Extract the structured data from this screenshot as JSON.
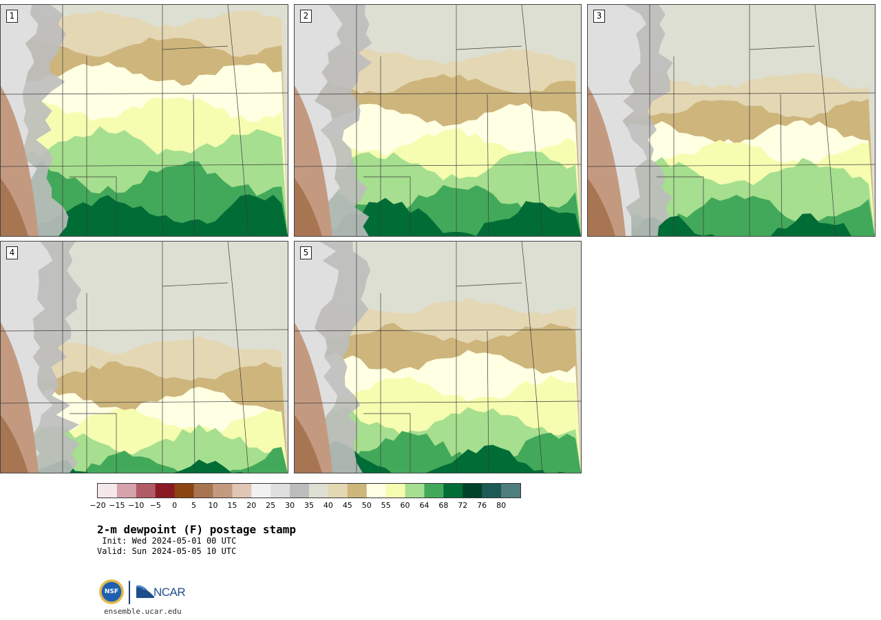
{
  "panels": [
    {
      "label": "1",
      "scenario": "moist"
    },
    {
      "label": "2",
      "scenario": "mid"
    },
    {
      "label": "3",
      "scenario": "dry-south"
    },
    {
      "label": "4",
      "scenario": "dry"
    },
    {
      "label": "5",
      "scenario": "mid-dry"
    }
  ],
  "colorbar": {
    "colors": [
      "#f4e8ea",
      "#d6a3ac",
      "#b15c66",
      "#8a1a24",
      "#8b4513",
      "#a87552",
      "#c39a80",
      "#e0c6b4",
      "#f1f1f1",
      "#dfdfdf",
      "#bcbcbc",
      "#dedfd3",
      "#e4d7b4",
      "#cdb57c",
      "#ffffe3",
      "#f6fdb0",
      "#a6df8f",
      "#43a95a",
      "#006d37",
      "#00422a",
      "#1e5a55",
      "#4f7e7f"
    ],
    "tick_labels": [
      "−20",
      "−15",
      "−10",
      "−5",
      "0",
      "5",
      "10",
      "15",
      "20",
      "25",
      "30",
      "35",
      "40",
      "45",
      "50",
      "55",
      "60",
      "64",
      "68",
      "72",
      "76",
      "80"
    ]
  },
  "title": "2-m dewpoint (F) postage stamp",
  "init_line": " Init: Wed 2024-05-01 00 UTC",
  "valid_line": "Valid: Sun 2024-05-05 10 UTC",
  "logos": {
    "nsf_text": "NSF",
    "ncar_text": "NCAR"
  },
  "site_url": "ensemble.ucar.edu"
}
